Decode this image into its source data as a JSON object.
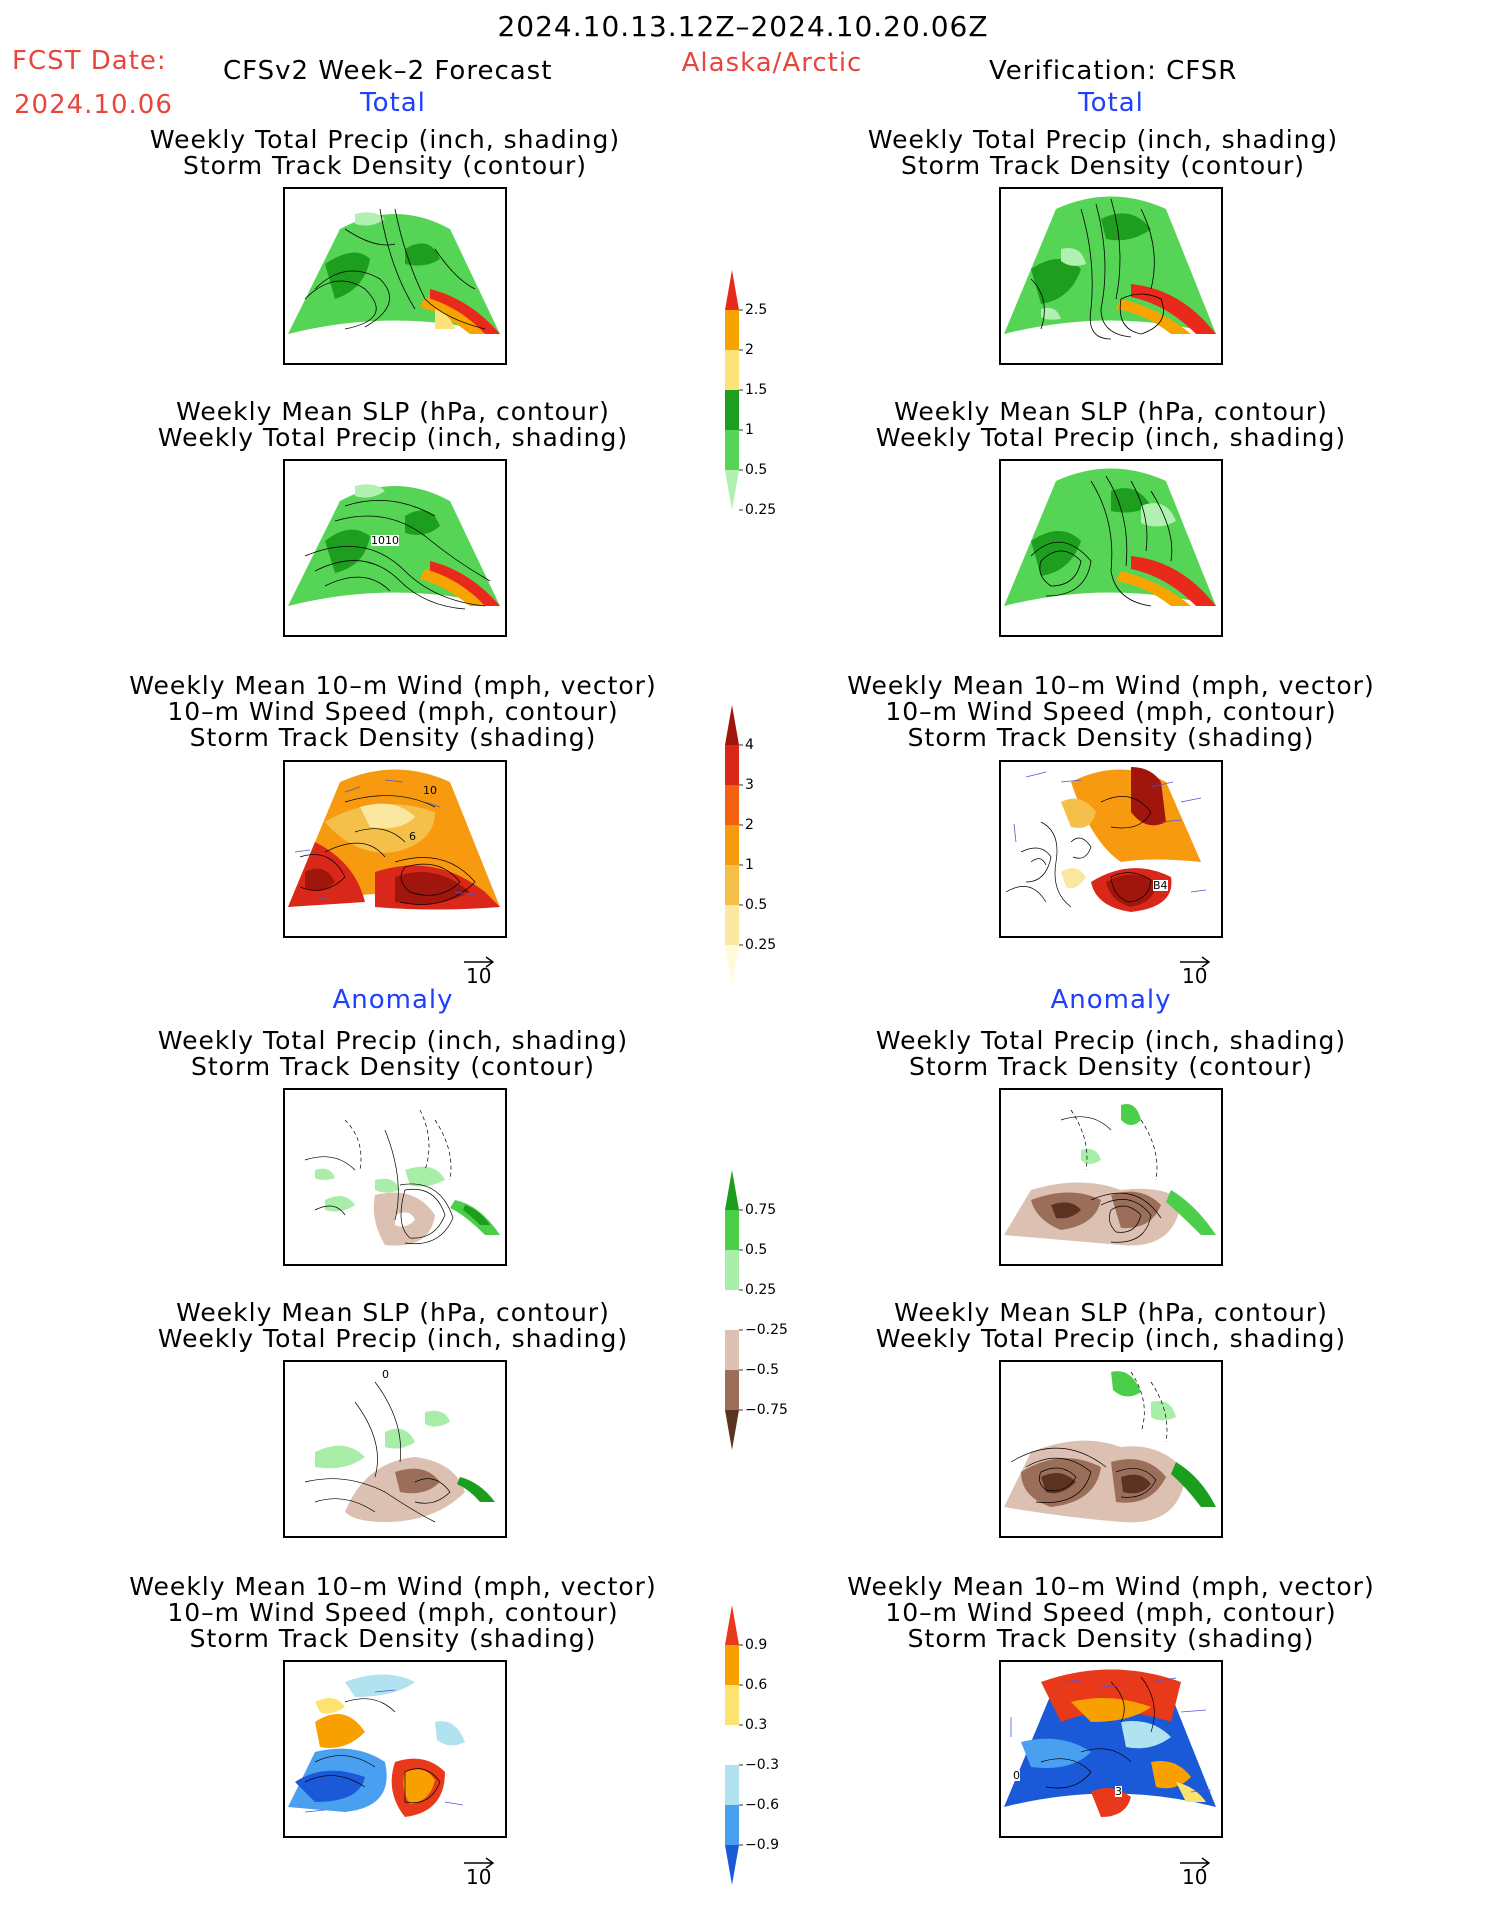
{
  "header": {
    "date_range": "2024.10.13.12Z–2024.10.20.06Z",
    "fcst_label": "FCST Date:",
    "fcst_date": "2024.10.06",
    "model": "CFSv2 Week–2 Forecast",
    "region": "Alaska/Arctic",
    "verification": "Verification: CFSR"
  },
  "sections": {
    "total": "Total",
    "anomaly": "Anomaly"
  },
  "titles": {
    "precip_storm": [
      "Weekly Total Precip (inch, shading)",
      "Storm Track Density (contour)"
    ],
    "slp_precip": [
      "Weekly Mean SLP (hPa, contour)",
      "Weekly Total Precip (inch, shading)"
    ],
    "wind_storm": [
      "Weekly Mean 10–m Wind (mph, vector)",
      "10–m Wind Speed (mph, contour)",
      "Storm Track Density (shading)"
    ]
  },
  "vector_ref": "10",
  "contour_labels": {
    "slp_1010": "1010",
    "wind_10": "10",
    "wind_6": "6",
    "wind_b4": "B4",
    "anom_0": "0",
    "anom_3": "3"
  },
  "colorbars": [
    {
      "id": "precip_total",
      "labels": [
        "2.5",
        "2",
        "1.5",
        "1",
        "0.5",
        "0.25"
      ],
      "colors": [
        "#e8291c",
        "#f7a400",
        "#fbe37a",
        "#1e9e1e",
        "#55d455",
        "#b0f0b0"
      ]
    },
    {
      "id": "storm_total",
      "labels": [
        "4",
        "3",
        "2",
        "1",
        "0.5",
        "0.25"
      ],
      "colors": [
        "#a0160c",
        "#d9281a",
        "#f26010",
        "#f79a10",
        "#f5c04a",
        "#fbe8a0",
        "#fffbd8"
      ]
    },
    {
      "id": "precip_anom",
      "labels": [
        "0.75",
        "0.5",
        "0.25",
        "−0.25",
        "−0.5",
        "−0.75"
      ],
      "colors": [
        "#1b9e1b",
        "#4bcf4b",
        "#a8eea8",
        "#ffffff",
        "#dcc0b2",
        "#9b6e5a",
        "#5a3322"
      ]
    },
    {
      "id": "storm_anom",
      "labels": [
        "0.9",
        "0.6",
        "0.3",
        "−0.3",
        "−0.6",
        "−0.9"
      ],
      "colors": [
        "#e83a1a",
        "#f7a000",
        "#fce370",
        "#ffffff",
        "#b0e2f0",
        "#4aa0f0",
        "#1a5ad8"
      ]
    }
  ],
  "colors": {
    "header_red": "#e8453c",
    "header_blue": "#1f3fff",
    "vector_blue": "#5055e0"
  }
}
